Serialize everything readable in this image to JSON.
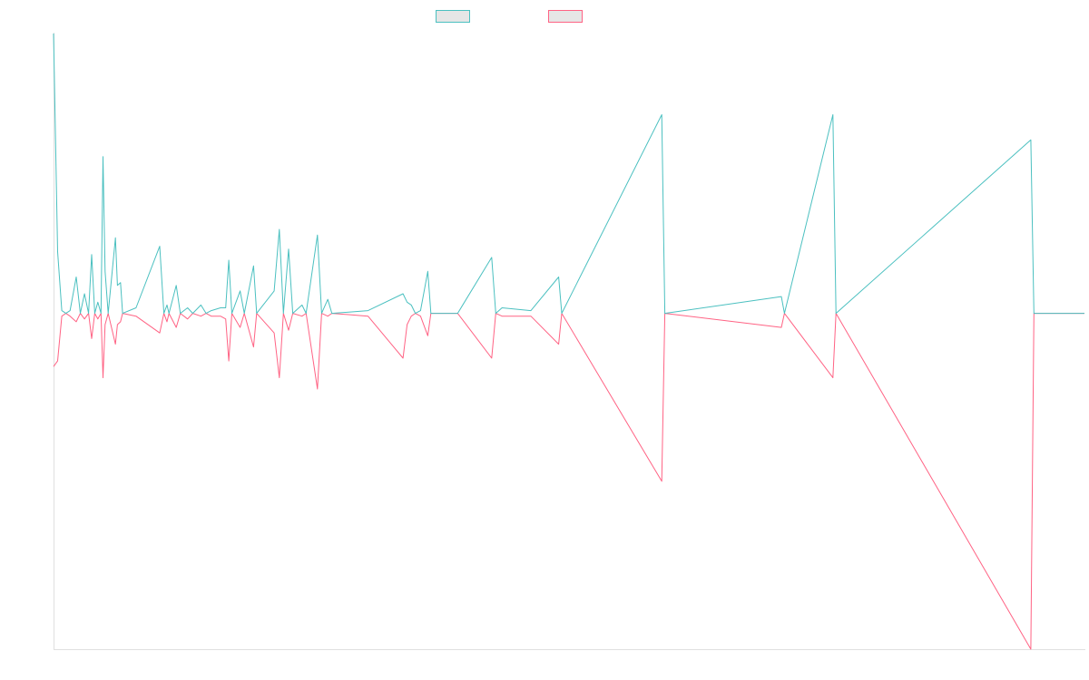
{
  "chart_data": {
    "type": "line",
    "title": "",
    "xlabel": "",
    "ylabel": "",
    "legend_position": "top-center",
    "grid": false,
    "xlim": [
      0,
      100
    ],
    "ylim": [
      -1.2,
      1.0
    ],
    "series": [
      {
        "color": "#4bc0c0",
        "points": [
          [
            0,
            1.0
          ],
          [
            0.4,
            0.22
          ],
          [
            0.8,
            0.01
          ],
          [
            1.2,
            0.0
          ],
          [
            1.6,
            0.01
          ],
          [
            2.2,
            0.13
          ],
          [
            2.6,
            0.0
          ],
          [
            3.0,
            0.07
          ],
          [
            3.4,
            0.0
          ],
          [
            3.7,
            0.21
          ],
          [
            4.0,
            0.0
          ],
          [
            4.3,
            0.04
          ],
          [
            4.6,
            0.0
          ],
          [
            4.8,
            0.56
          ],
          [
            5.0,
            0.15
          ],
          [
            5.3,
            0.0
          ],
          [
            6.0,
            0.27
          ],
          [
            6.2,
            0.1
          ],
          [
            6.5,
            0.11
          ],
          [
            6.7,
            0.0
          ],
          [
            8.0,
            0.02
          ],
          [
            10.3,
            0.24
          ],
          [
            10.7,
            0.0
          ],
          [
            11.0,
            0.03
          ],
          [
            11.2,
            0.0
          ],
          [
            11.9,
            0.1
          ],
          [
            12.3,
            0.0
          ],
          [
            13.0,
            0.02
          ],
          [
            13.5,
            0.0
          ],
          [
            14.3,
            0.03
          ],
          [
            14.8,
            0.0
          ],
          [
            15.3,
            0.01
          ],
          [
            16.2,
            0.02
          ],
          [
            16.7,
            0.02
          ],
          [
            17.0,
            0.19
          ],
          [
            17.3,
            0.0
          ],
          [
            18.1,
            0.08
          ],
          [
            18.5,
            0.0
          ],
          [
            19.4,
            0.17
          ],
          [
            19.7,
            0.0
          ],
          [
            21.4,
            0.08
          ],
          [
            21.9,
            0.3
          ],
          [
            22.3,
            0.0
          ],
          [
            22.8,
            0.23
          ],
          [
            23.2,
            0.0
          ],
          [
            24.1,
            0.03
          ],
          [
            24.5,
            0.0
          ],
          [
            25.6,
            0.28
          ],
          [
            26.0,
            0.0
          ],
          [
            26.6,
            0.05
          ],
          [
            27.0,
            0.0
          ],
          [
            30.5,
            0.01
          ],
          [
            33.9,
            0.07
          ],
          [
            34.3,
            0.04
          ],
          [
            34.7,
            0.03
          ],
          [
            35.1,
            0.0
          ],
          [
            35.6,
            0.01
          ],
          [
            36.3,
            0.15
          ],
          [
            36.6,
            0.0
          ],
          [
            39.2,
            0.0
          ],
          [
            42.5,
            0.2
          ],
          [
            42.9,
            0.0
          ],
          [
            43.5,
            0.02
          ],
          [
            46.3,
            0.01
          ],
          [
            49.0,
            0.13
          ],
          [
            49.3,
            0.0
          ],
          [
            59.0,
            0.71
          ],
          [
            59.3,
            0.0
          ],
          [
            70.6,
            0.06
          ],
          [
            70.9,
            0.0
          ],
          [
            75.6,
            0.71
          ],
          [
            75.9,
            0.0
          ],
          [
            94.8,
            0.62
          ],
          [
            95.1,
            0.0
          ],
          [
            100,
            0.0
          ]
        ]
      },
      {
        "color": "#ff6384",
        "points": [
          [
            0,
            -0.19
          ],
          [
            0.4,
            -0.17
          ],
          [
            0.8,
            -0.01
          ],
          [
            1.2,
            0.0
          ],
          [
            1.6,
            -0.01
          ],
          [
            2.2,
            -0.03
          ],
          [
            2.6,
            0.0
          ],
          [
            3.0,
            -0.02
          ],
          [
            3.4,
            0.0
          ],
          [
            3.7,
            -0.09
          ],
          [
            4.0,
            0.0
          ],
          [
            4.3,
            -0.02
          ],
          [
            4.6,
            0.0
          ],
          [
            4.8,
            -0.23
          ],
          [
            5.0,
            -0.04
          ],
          [
            5.3,
            0.0
          ],
          [
            6.0,
            -0.11
          ],
          [
            6.2,
            -0.04
          ],
          [
            6.5,
            -0.03
          ],
          [
            6.7,
            0.0
          ],
          [
            8.0,
            -0.01
          ],
          [
            10.3,
            -0.07
          ],
          [
            10.7,
            0.0
          ],
          [
            11.0,
            -0.03
          ],
          [
            11.2,
            0.0
          ],
          [
            11.9,
            -0.05
          ],
          [
            12.3,
            0.0
          ],
          [
            13.0,
            -0.02
          ],
          [
            13.5,
            0.0
          ],
          [
            14.3,
            -0.01
          ],
          [
            14.8,
            0.0
          ],
          [
            15.3,
            -0.01
          ],
          [
            16.2,
            -0.01
          ],
          [
            16.7,
            -0.02
          ],
          [
            17.0,
            -0.17
          ],
          [
            17.3,
            0.0
          ],
          [
            18.1,
            -0.05
          ],
          [
            18.5,
            0.0
          ],
          [
            19.4,
            -0.12
          ],
          [
            19.7,
            0.0
          ],
          [
            21.4,
            -0.07
          ],
          [
            21.9,
            -0.23
          ],
          [
            22.3,
            0.0
          ],
          [
            22.8,
            -0.06
          ],
          [
            23.2,
            0.0
          ],
          [
            24.1,
            -0.01
          ],
          [
            24.5,
            0.0
          ],
          [
            25.6,
            -0.27
          ],
          [
            26.0,
            0.0
          ],
          [
            26.6,
            -0.01
          ],
          [
            27.0,
            0.0
          ],
          [
            30.5,
            -0.01
          ],
          [
            33.9,
            -0.16
          ],
          [
            34.3,
            -0.04
          ],
          [
            34.7,
            -0.01
          ],
          [
            35.1,
            0.0
          ],
          [
            35.6,
            -0.01
          ],
          [
            36.3,
            -0.08
          ],
          [
            36.6,
            0.0
          ],
          [
            39.2,
            0.0
          ],
          [
            42.5,
            -0.16
          ],
          [
            42.9,
            0.0
          ],
          [
            43.5,
            -0.01
          ],
          [
            46.3,
            -0.01
          ],
          [
            49.0,
            -0.11
          ],
          [
            49.3,
            0.0
          ],
          [
            59.0,
            -0.6
          ],
          [
            59.3,
            0.0
          ],
          [
            70.6,
            -0.05
          ],
          [
            70.9,
            0.0
          ],
          [
            75.6,
            -0.23
          ],
          [
            75.9,
            0.0
          ],
          [
            94.8,
            -1.2
          ],
          [
            95.1,
            0.0
          ],
          [
            100,
            0.0
          ]
        ]
      }
    ]
  }
}
